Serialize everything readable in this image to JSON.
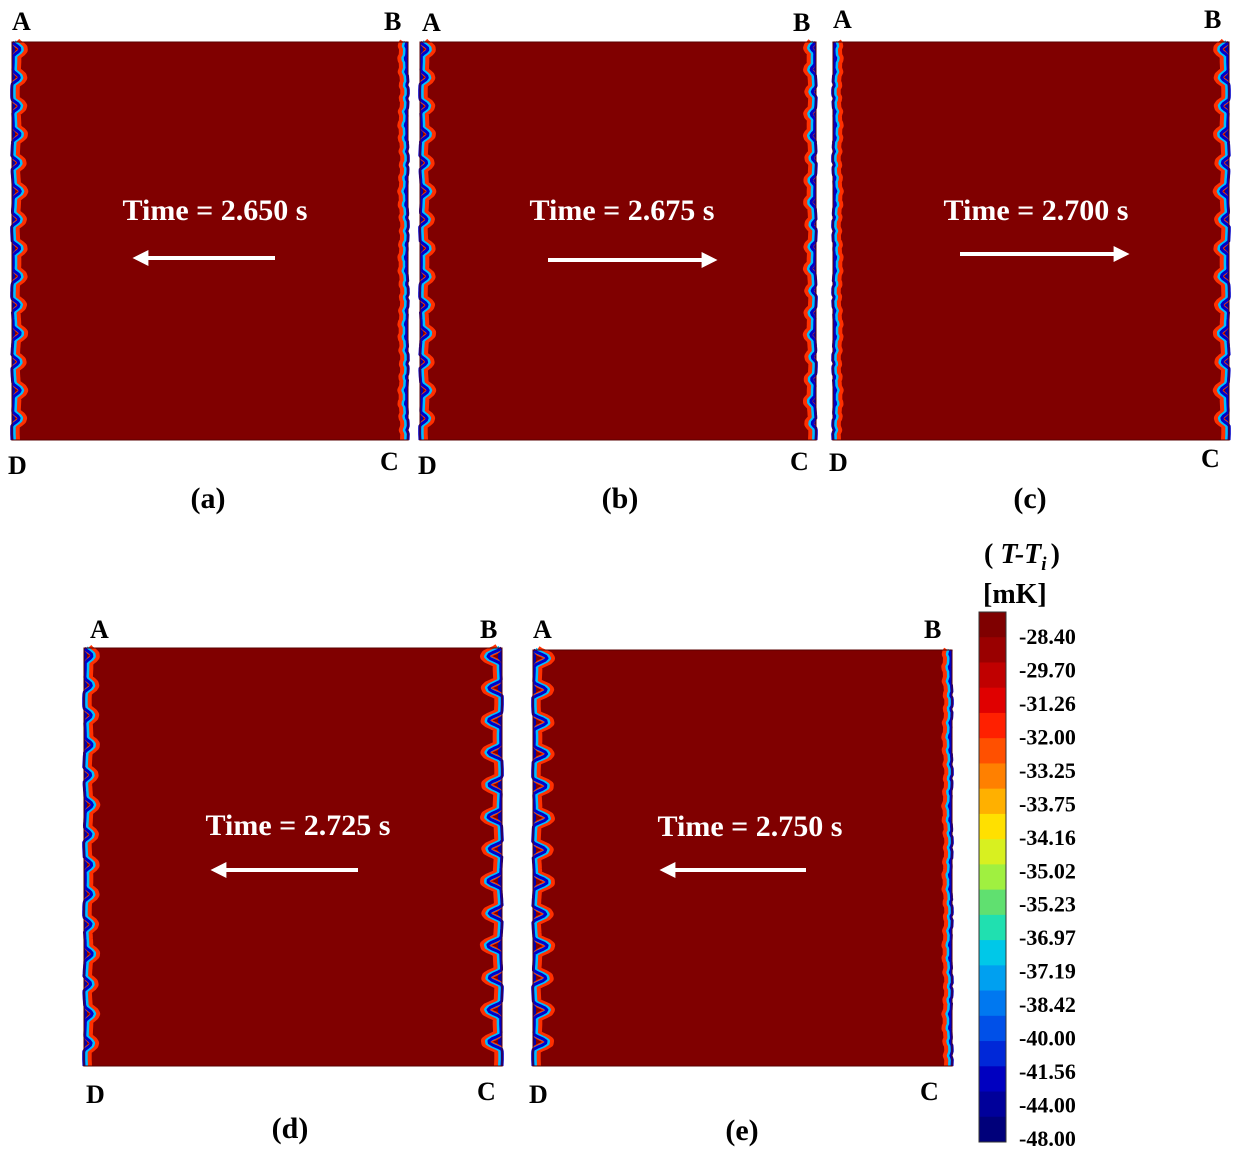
{
  "panels": [
    {
      "id": "a",
      "label": "(a)",
      "time": "Time = 2.650 s",
      "direction": "left",
      "corners": {
        "tl": "A",
        "tr": "B",
        "bl": "D",
        "br": "C"
      },
      "left_wave": "medium",
      "right_wave": "flat"
    },
    {
      "id": "b",
      "label": "(b)",
      "time": "Time = 2.675 s",
      "direction": "right",
      "corners": {
        "tl": "A",
        "tr": "B",
        "bl": "D",
        "br": "C"
      },
      "left_wave": "medium",
      "right_wave": "small"
    },
    {
      "id": "c",
      "label": "(c)",
      "time": "Time = 2.700 s",
      "direction": "right",
      "corners": {
        "tl": "A",
        "tr": "B",
        "bl": "D",
        "br": "C"
      },
      "left_wave": "flat",
      "right_wave": "medium"
    },
    {
      "id": "d",
      "label": "(d)",
      "time": "Time = 2.725 s",
      "direction": "left",
      "corners": {
        "tl": "A",
        "tr": "B",
        "bl": "D",
        "br": "C"
      },
      "left_wave": "medium",
      "right_wave": "large"
    },
    {
      "id": "e",
      "label": "(e)",
      "time": "Time = 2.750 s",
      "direction": "left",
      "corners": {
        "tl": "A",
        "tr": "B",
        "bl": "D",
        "br": "C"
      },
      "left_wave": "large",
      "right_wave": "flat"
    }
  ],
  "colorbar": {
    "title_open": "(",
    "title_var": "T-T",
    "title_sub": "i",
    "title_close": ")",
    "unit": "[mK]",
    "ticks": [
      "-28.40",
      "-29.70",
      "-31.26",
      "-32.00",
      "-33.25",
      "-33.75",
      "-34.16",
      "-35.02",
      "-35.23",
      "-36.97",
      "-37.19",
      "-38.42",
      "-40.00",
      "-41.56",
      "-44.00",
      "-48.00"
    ],
    "colors": [
      "#7f0000",
      "#9a0000",
      "#c00000",
      "#e00000",
      "#ff2000",
      "#ff5000",
      "#ff8000",
      "#ffb000",
      "#ffe000",
      "#d8f020",
      "#a0f040",
      "#60e070",
      "#20e0b0",
      "#00c8e8",
      "#00a0f0",
      "#0078f0",
      "#0050e8",
      "#0028d8",
      "#0000c0",
      "#00009a",
      "#00007a"
    ],
    "field_color": "#800000"
  }
}
